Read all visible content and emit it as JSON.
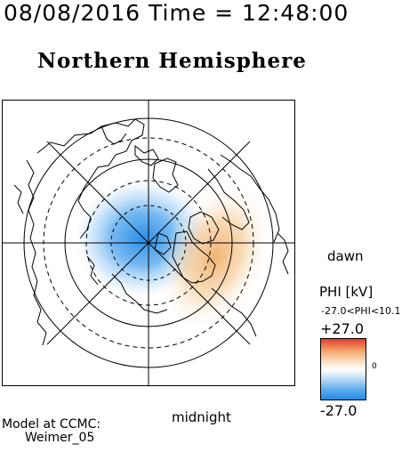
{
  "header": {
    "timestamp": "08/08/2016 Time = 12:48:00",
    "title": "Northern Hemisphere"
  },
  "map": {
    "label_dawn": "dawn",
    "label_midnight": "midnight",
    "colors": {
      "negative": "#2f8fe8",
      "positive": "#f0a050",
      "frame": "#000000"
    }
  },
  "colorbar": {
    "title": "PHI [kV]",
    "range_text": "-27.0<PHI<10.1",
    "max_label": "+27.0",
    "zero_label": "0",
    "min_label": "-27.0",
    "colors": {
      "top": "#e23a2a",
      "middle": "#ffffff",
      "bottom": "#1e88e5"
    }
  },
  "footer": {
    "model_label": "Model at CCMC:",
    "model_name": "Weimer_05"
  }
}
